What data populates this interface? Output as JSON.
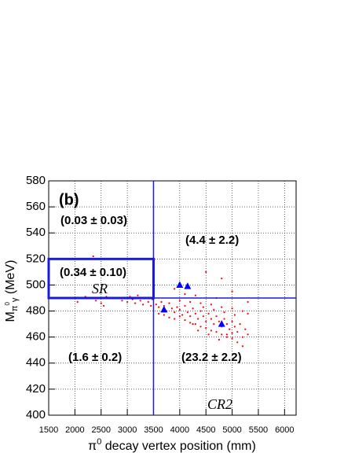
{
  "chart_data": {
    "type": "scatter",
    "xlabel": {
      "symbol": "π",
      "sup": "0",
      "text": " decay vertex position (mm)"
    },
    "ylabel": {
      "symbol": "M",
      "sub": "π",
      "subsup": "0",
      "sub2": "γ",
      "text": " (MeV)"
    },
    "annotations": [
      "(b)",
      "(0.03 ± 0.03)",
      "(4.4 ± 2.2)",
      "(0.34 ± 0.10)",
      "SR",
      "(1.6 ± 0.2)",
      "(23.2 ± 2.2)",
      "CR2"
    ],
    "xlim": [
      1500,
      6220
    ],
    "ylim": [
      400,
      580
    ],
    "xticks": [
      1500,
      2000,
      2500,
      3000,
      3500,
      4000,
      4500,
      5000,
      5500,
      6000
    ],
    "yticks": [
      400,
      420,
      440,
      460,
      480,
      500,
      520,
      540,
      560,
      580
    ],
    "grid": true,
    "region_lines": {
      "x_cut": 3500,
      "y_cut": 490,
      "sr_box": [
        1500,
        3500,
        490,
        520
      ],
      "color": "#1a1adc"
    },
    "series": [
      {
        "color": "#ff0000",
        "marker": "dot",
        "x": [
          2350,
          2050,
          2400,
          2500,
          2550,
          2700,
          2900,
          3000,
          3100,
          3150,
          3250,
          3300,
          3350,
          3400,
          3450,
          3480,
          2200,
          2600,
          3050,
          3200,
          3550,
          3600,
          3650,
          3700,
          3750,
          3800,
          3850,
          3900,
          3950,
          4000,
          4050,
          4100,
          4150,
          4200,
          4250,
          4300,
          4350,
          4400,
          4450,
          4500,
          4550,
          4600,
          4650,
          4700,
          4750,
          4800,
          4850,
          4900,
          4950,
          5000,
          5050,
          5100,
          5150,
          5200,
          5250,
          5300,
          5100,
          5200,
          4900,
          5000,
          3600,
          3700,
          3800,
          3900,
          4000,
          4100,
          4200,
          4300,
          4400,
          4500,
          4600,
          4700,
          4800,
          4900,
          5000,
          4000,
          4200,
          4400,
          4600,
          4800,
          5000,
          5200,
          5300,
          4300,
          4700,
          4500,
          4800,
          3900,
          5000,
          4100,
          5300,
          4450,
          4650,
          4850,
          5050,
          4250,
          4550,
          4750,
          4350
        ],
        "y": [
          522,
          487,
          488,
          486,
          484,
          490,
          488,
          487,
          489,
          486,
          488,
          485,
          490,
          487,
          484,
          489,
          491,
          491,
          491,
          492,
          485,
          483,
          487,
          484,
          480,
          486,
          482,
          479,
          483,
          481,
          477,
          484,
          479,
          476,
          482,
          478,
          474,
          480,
          476,
          472,
          478,
          474,
          470,
          476,
          472,
          468,
          474,
          470,
          466,
          472,
          468,
          464,
          470,
          460,
          466,
          462,
          456,
          453,
          462,
          459,
          478,
          477,
          475,
          474,
          476,
          473,
          471,
          470,
          468,
          467,
          465,
          464,
          462,
          460,
          463,
          488,
          487,
          486,
          485,
          483,
          482,
          480,
          478,
          492,
          490,
          510,
          505,
          497,
          495,
          493,
          487,
          483,
          481,
          479,
          477,
          470,
          462,
          458,
          465
        ]
      },
      {
        "color": "#0000ff",
        "marker": "triangle",
        "x": [
          3700,
          4000,
          4150,
          4800
        ],
        "y": [
          481,
          500,
          499,
          470
        ]
      }
    ]
  }
}
